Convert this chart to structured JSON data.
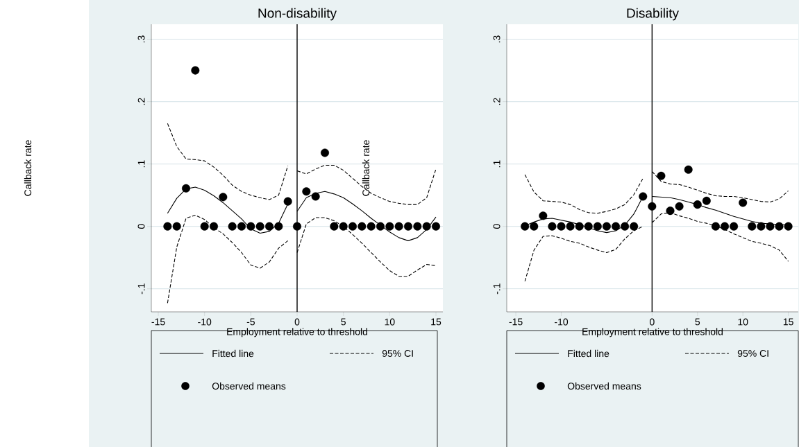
{
  "chart_data": [
    {
      "type": "line",
      "title": "Non-disability",
      "xlabel": "Employment relative to threshold",
      "ylabel": "Callback rate",
      "xlim": [
        -15.75,
        15.75
      ],
      "ylim": [
        -0.137,
        0.324
      ],
      "xticks": [
        -15,
        -10,
        -5,
        0,
        5,
        10,
        15
      ],
      "yticks": [
        {
          "value": -0.1,
          "label": "-.1"
        },
        0,
        {
          "value": 0.1,
          "label": ".1"
        },
        {
          "value": 0.2,
          "label": ".2"
        },
        {
          "value": 0.3,
          "label": ".3"
        }
      ],
      "grid": "y",
      "legend": "bottom",
      "ref_lines": [
        {
          "axis": "x",
          "value": 0,
          "color": "#000000"
        }
      ],
      "series": [
        {
          "name": "Fitted line",
          "color": "#000000",
          "line_style": "solid",
          "marker": "none",
          "x": [
            -14,
            -13,
            -12,
            -11,
            -10,
            -9,
            -8,
            -7,
            -6,
            -5,
            -4,
            -3,
            -2,
            -1
          ],
          "values": [
            0.021,
            0.045,
            0.06,
            0.063,
            0.058,
            0.049,
            0.038,
            0.025,
            0.012,
            -0.004,
            -0.011,
            -0.008,
            0.005,
            0.036
          ]
        },
        {
          "color": "#000000",
          "line_style": "solid",
          "marker": "none",
          "x": [
            0,
            1,
            2,
            3,
            4,
            5,
            6,
            7,
            8,
            9,
            10,
            11,
            12,
            13,
            14,
            15
          ],
          "values": [
            0.024,
            0.046,
            0.053,
            0.056,
            0.052,
            0.046,
            0.036,
            0.025,
            0.013,
            0.002,
            -0.009,
            -0.018,
            -0.023,
            -0.018,
            -0.005,
            0.015
          ]
        },
        {
          "name": "95% CI",
          "color": "#000000",
          "line_style": "dashed",
          "marker": "none",
          "x": [
            -14,
            -13,
            -12,
            -11,
            -10,
            -9,
            -8,
            -7,
            -6,
            -5,
            -4,
            -3,
            -2,
            -1
          ],
          "values": [
            0.165,
            0.128,
            0.108,
            0.107,
            0.105,
            0.095,
            0.082,
            0.066,
            0.056,
            0.05,
            0.046,
            0.043,
            0.05,
            0.097
          ]
        },
        {
          "color": "#000000",
          "line_style": "dashed",
          "marker": "none",
          "x": [
            0,
            1,
            2,
            3,
            4,
            5,
            6,
            7,
            8,
            9,
            10,
            11,
            12,
            13,
            14,
            15
          ],
          "values": [
            0.089,
            0.084,
            0.092,
            0.098,
            0.098,
            0.09,
            0.077,
            0.064,
            0.053,
            0.046,
            0.04,
            0.037,
            0.035,
            0.035,
            0.046,
            0.092
          ]
        },
        {
          "color": "#000000",
          "line_style": "dashed",
          "marker": "none",
          "x": [
            -14,
            -13,
            -12,
            -11,
            -10,
            -9,
            -8,
            -7,
            -6,
            -5,
            -4,
            -3,
            -2,
            -1
          ],
          "values": [
            -0.123,
            -0.033,
            0.013,
            0.018,
            0.011,
            -0.002,
            -0.012,
            -0.026,
            -0.042,
            -0.062,
            -0.067,
            -0.057,
            -0.035,
            -0.023
          ]
        },
        {
          "color": "#000000",
          "line_style": "dashed",
          "marker": "none",
          "x": [
            0,
            1,
            2,
            3,
            4,
            5,
            6,
            7,
            8,
            9,
            10,
            11,
            12,
            13,
            14,
            15
          ],
          "values": [
            -0.042,
            0.004,
            0.014,
            0.014,
            0.009,
            0,
            -0.013,
            -0.027,
            -0.042,
            -0.057,
            -0.071,
            -0.08,
            -0.08,
            -0.07,
            -0.061,
            -0.063
          ]
        },
        {
          "name": "Observed means",
          "type": "scatter",
          "color": "#000000",
          "marker": "circle",
          "x": [
            -14,
            -13,
            -12,
            -11,
            -10,
            -9,
            -8,
            -7,
            -6,
            -5,
            -4,
            -3,
            -2,
            -1,
            0,
            1,
            2,
            3,
            4,
            5,
            6,
            7,
            8,
            9,
            10,
            11,
            12,
            13,
            14,
            15
          ],
          "values": [
            0,
            0,
            0.061,
            0.25,
            0,
            0,
            0.047,
            0,
            0,
            0,
            0,
            0,
            0,
            0.04,
            0,
            0.056,
            0.048,
            0.118,
            0,
            0,
            0,
            0,
            0,
            0,
            0,
            0,
            0,
            0,
            0,
            0
          ]
        }
      ]
    },
    {
      "type": "line",
      "title": "Disability",
      "xlabel": "Employment relative to threshold",
      "ylabel": "Callback rate",
      "xlim": [
        -16,
        16.1
      ],
      "ylim": [
        -0.137,
        0.324
      ],
      "xticks": [
        -15,
        -10,
        0,
        5,
        10,
        15
      ],
      "yticks": [
        {
          "value": -0.1,
          "label": "-.1"
        },
        0,
        {
          "value": 0.1,
          "label": ".1"
        },
        {
          "value": 0.2,
          "label": ".2"
        },
        {
          "value": 0.3,
          "label": ".3"
        }
      ],
      "grid": "y",
      "legend": "bottom",
      "ref_lines": [
        {
          "axis": "x",
          "value": 0,
          "color": "#000000"
        }
      ],
      "series": [
        {
          "name": "Fitted line",
          "color": "#000000",
          "line_style": "solid",
          "marker": "none",
          "x": [
            -14,
            -13,
            -12,
            -11,
            -10,
            -9,
            -8,
            -7,
            -6,
            -5,
            -4,
            -3,
            -2,
            -1
          ],
          "values": [
            0.001,
            0.007,
            0.012,
            0.013,
            0.01,
            0.007,
            0.003,
            -0.002,
            -0.007,
            -0.01,
            -0.007,
            0.002,
            0.02,
            0.048
          ]
        },
        {
          "color": "#000000",
          "line_style": "solid",
          "marker": "none",
          "x": [
            0,
            1,
            2,
            3,
            4,
            5,
            6,
            7,
            8,
            9,
            10,
            11,
            12,
            13,
            14,
            15
          ],
          "values": [
            0.048,
            0.047,
            0.046,
            0.043,
            0.039,
            0.035,
            0.03,
            0.026,
            0.021,
            0.016,
            0.012,
            0.008,
            0.005,
            0.004,
            0.003,
            0.002
          ]
        },
        {
          "name": "95% CI",
          "color": "#000000",
          "line_style": "dashed",
          "marker": "none",
          "x": [
            -14,
            -13,
            -12,
            -11,
            -10,
            -9,
            -8,
            -7,
            -6,
            -5,
            -4,
            -3,
            -2,
            -1
          ],
          "values": [
            0.083,
            0.055,
            0.041,
            0.04,
            0.039,
            0.035,
            0.027,
            0.022,
            0.021,
            0.024,
            0.028,
            0.035,
            0.051,
            0.077
          ]
        },
        {
          "color": "#000000",
          "line_style": "dashed",
          "marker": "none",
          "x": [
            0,
            1,
            2,
            3,
            4,
            5,
            6,
            7,
            8,
            9,
            10,
            11,
            12,
            13,
            14,
            15
          ],
          "values": [
            0.088,
            0.072,
            0.068,
            0.067,
            0.063,
            0.058,
            0.053,
            0.049,
            0.048,
            0.048,
            0.046,
            0.043,
            0.04,
            0.039,
            0.044,
            0.057
          ]
        },
        {
          "color": "#000000",
          "line_style": "dashed",
          "marker": "none",
          "x": [
            -14,
            -13,
            -12,
            -11,
            -10,
            -9,
            -8,
            -7,
            -6,
            -5,
            -4,
            -3,
            -2,
            -1
          ],
          "values": [
            -0.088,
            -0.038,
            -0.016,
            -0.015,
            -0.019,
            -0.024,
            -0.027,
            -0.033,
            -0.038,
            -0.042,
            -0.037,
            -0.02,
            -0.007,
            0
          ]
        },
        {
          "color": "#000000",
          "line_style": "dashed",
          "marker": "none",
          "x": [
            0,
            1,
            2,
            3,
            4,
            5,
            6,
            7,
            8,
            9,
            10,
            11,
            12,
            13,
            14,
            15
          ],
          "values": [
            0.006,
            0.02,
            0.022,
            0.017,
            0.013,
            0.008,
            0.005,
            0.001,
            -0.005,
            -0.012,
            -0.018,
            -0.024,
            -0.027,
            -0.031,
            -0.038,
            -0.056
          ]
        },
        {
          "name": "Observed means",
          "type": "scatter",
          "color": "#000000",
          "marker": "circle",
          "x": [
            -14,
            -13,
            -12,
            -11,
            -10,
            -9,
            -8,
            -7,
            -6,
            -5,
            -4,
            -3,
            -2,
            -1,
            0,
            1,
            2,
            3,
            4,
            5,
            6,
            7,
            8,
            9,
            10,
            11,
            12,
            13,
            14,
            15
          ],
          "values": [
            0,
            0,
            0.017,
            0,
            0,
            0,
            0,
            0,
            0,
            0,
            0,
            0,
            0,
            0.048,
            0.032,
            0.081,
            0.025,
            0.032,
            0.091,
            0.035,
            0.041,
            0,
            0,
            0,
            0.038,
            0,
            0,
            0,
            0,
            0
          ]
        }
      ]
    }
  ]
}
